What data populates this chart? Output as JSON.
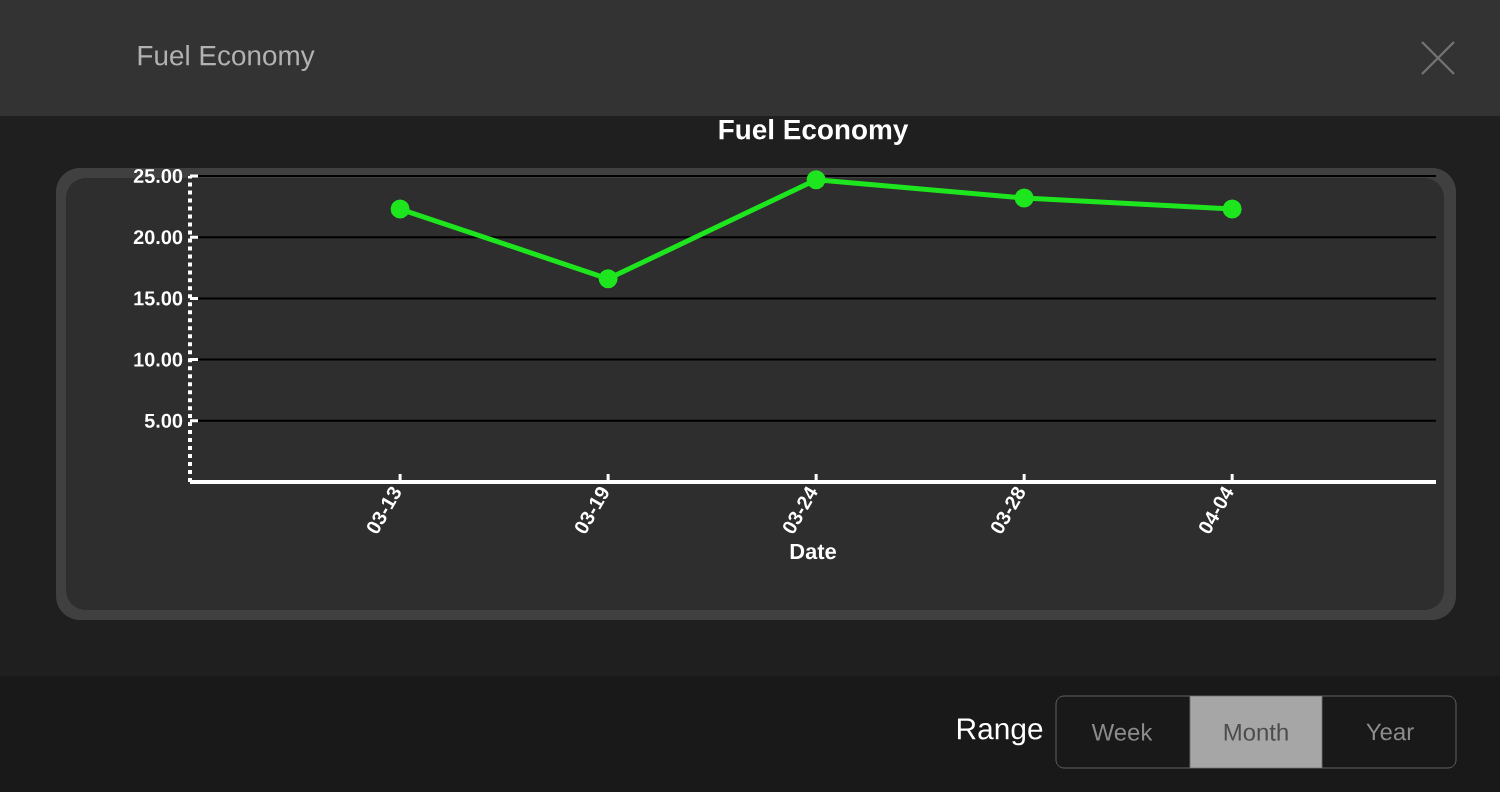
{
  "chart_data": {
    "type": "line",
    "title": "Fuel Economy",
    "xlabel": "Date",
    "categories": [
      "03-13",
      "03-19",
      "03-24",
      "03-28",
      "04-04"
    ],
    "series": [
      {
        "color": "#1ee61e",
        "values": [
          22.3,
          16.6,
          24.7,
          23.2,
          22.3
        ]
      }
    ],
    "ylim": [
      0,
      25
    ],
    "yticks": [
      {
        "value": 5,
        "label": "5.00"
      },
      {
        "value": 10,
        "label": "10.00"
      },
      {
        "value": 15,
        "label": "15.00"
      },
      {
        "value": 20,
        "label": "20.00"
      },
      {
        "value": 25,
        "label": "25.00"
      }
    ],
    "grid": "y",
    "marker": "circle",
    "line_style": "solid",
    "annotations": [
      "Fuel Economy",
      "Range",
      "Week",
      "Month",
      "Year"
    ]
  }
}
